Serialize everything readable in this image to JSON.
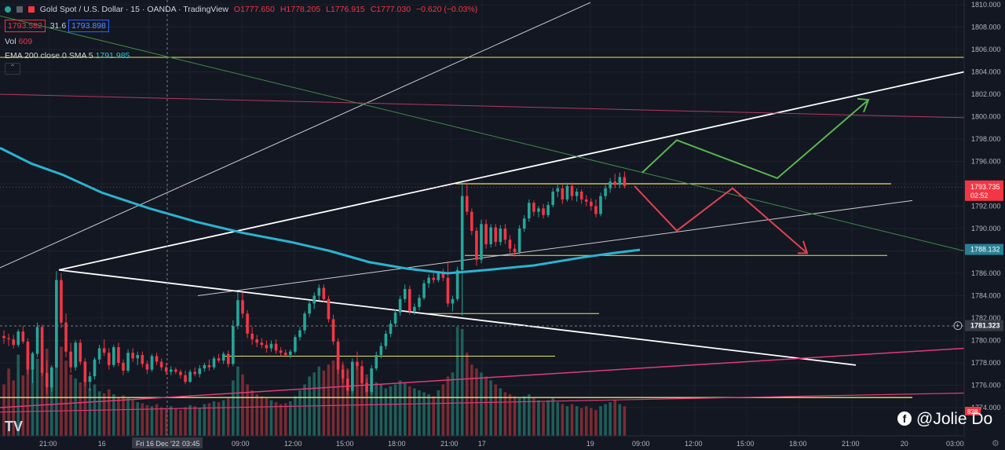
{
  "header": {
    "symbol": "Gold Spot / U.S. Dollar · 15 · OANDA · TradingView",
    "open": "O1777.650",
    "high": "H1778.205",
    "low": "L1776.915",
    "close": "C1777.030",
    "change": "−0.620 (−0.03%)",
    "sell_price": "1793.582",
    "spread": "31.6",
    "buy_price": "1793.898",
    "vol_label": "Vol",
    "vol_value": "609",
    "ema_label": "EMA 200 close 0 SMA 5",
    "ema_value": "1791.985",
    "collapse_icon": "chevron-up-icon"
  },
  "watermark": {
    "text": "@Jolie Do",
    "icon": "facebook-icon"
  },
  "tv_logo": "TV",
  "colors": {
    "background": "#131722",
    "up": "#26a69a",
    "down": "#f23645",
    "ema": "#2ab4cf",
    "yellow_level": "#e8e65c",
    "pink_line": "#e03b7a",
    "arrow_up": "#5ab552",
    "arrow_down": "#e0434f"
  },
  "chart_data": {
    "type": "candlestick",
    "y_ticks": [
      "1810.000",
      "1808.000",
      "1806.000",
      "1804.000",
      "1802.000",
      "1800.000",
      "1798.000",
      "1796.000",
      "1794.000",
      "1792.000",
      "1790.000",
      "1788.000",
      "1786.000",
      "1784.000",
      "1782.000",
      "1780.000",
      "1778.000",
      "1776.000",
      "1774.000"
    ],
    "ylim": [
      1773,
      1810.5
    ],
    "x_ticks": [
      "21:00",
      "16",
      "Fri 16 Dec '22",
      "03:45",
      "09:00",
      "12:00",
      "15:00",
      "18:00",
      "21:00",
      "17",
      "19",
      "09:00",
      "12:00",
      "15:00",
      "18:00",
      "21:00",
      "20",
      "03:00"
    ],
    "price_labels": {
      "current_price": "1793.735",
      "countdown": "02:52",
      "ema_price": "1788.132",
      "crosshair_price": "1781.323",
      "volume_value": "828"
    },
    "candles": [
      [
        1780.4,
        1780.9,
        1779.7,
        1780.2
      ],
      [
        1780.2,
        1780.6,
        1779.5,
        1780.1
      ],
      [
        1780.1,
        1780.5,
        1779.3,
        1779.6
      ],
      [
        1779.6,
        1781.0,
        1779.4,
        1780.8
      ],
      [
        1780.8,
        1781.3,
        1779.7,
        1779.9
      ],
      [
        1779.9,
        1780.2,
        1777.0,
        1777.4
      ],
      [
        1777.4,
        1779.0,
        1776.2,
        1778.8
      ],
      [
        1778.8,
        1781.6,
        1778.5,
        1781.2
      ],
      [
        1781.2,
        1781.4,
        1776.8,
        1777.1
      ],
      [
        1777.1,
        1778.2,
        1775.2,
        1775.8
      ],
      [
        1775.8,
        1777.8,
        1775.4,
        1777.6
      ],
      [
        1777.6,
        1786.2,
        1777.5,
        1785.4
      ],
      [
        1785.4,
        1786.0,
        1781.1,
        1781.6
      ],
      [
        1781.6,
        1782.4,
        1778.5,
        1779.0
      ],
      [
        1779.0,
        1779.8,
        1777.1,
        1777.6
      ],
      [
        1777.6,
        1780.0,
        1777.3,
        1779.8
      ],
      [
        1779.8,
        1780.1,
        1777.8,
        1778.1
      ],
      [
        1778.1,
        1778.4,
        1775.9,
        1776.3
      ],
      [
        1776.3,
        1777.2,
        1775.5,
        1776.8
      ],
      [
        1776.8,
        1778.5,
        1776.5,
        1778.3
      ],
      [
        1778.3,
        1779.6,
        1777.9,
        1779.3
      ],
      [
        1779.3,
        1780.1,
        1778.6,
        1778.9
      ],
      [
        1778.9,
        1779.3,
        1777.4,
        1777.8
      ],
      [
        1777.8,
        1779.6,
        1777.6,
        1779.4
      ],
      [
        1779.4,
        1779.8,
        1777.7,
        1778.0
      ],
      [
        1778.0,
        1778.3,
        1776.9,
        1777.3
      ],
      [
        1777.3,
        1779.2,
        1777.1,
        1778.9
      ],
      [
        1778.9,
        1779.3,
        1778.1,
        1778.4
      ],
      [
        1778.4,
        1779.0,
        1777.8,
        1778.7
      ],
      [
        1778.7,
        1779.0,
        1777.6,
        1777.9
      ],
      [
        1777.9,
        1778.2,
        1777.0,
        1777.4
      ],
      [
        1777.4,
        1778.8,
        1777.2,
        1778.6
      ],
      [
        1778.6,
        1778.9,
        1777.8,
        1778.1
      ],
      [
        1778.1,
        1778.4,
        1777.3,
        1777.6
      ],
      [
        1777.6,
        1778.0,
        1776.9,
        1777.2
      ],
      [
        1777.2,
        1777.7,
        1776.9,
        1777.4
      ],
      [
        1777.4,
        1777.6,
        1777.0,
        1777.2
      ],
      [
        1777.2,
        1777.4,
        1776.6,
        1776.9
      ],
      [
        1776.9,
        1777.3,
        1776.1,
        1776.3
      ],
      [
        1776.3,
        1777.4,
        1776.2,
        1777.2
      ],
      [
        1777.2,
        1777.6,
        1776.8,
        1777.0
      ],
      [
        1777.0,
        1777.8,
        1776.7,
        1777.5
      ],
      [
        1777.5,
        1778.0,
        1777.2,
        1777.8
      ],
      [
        1777.8,
        1778.3,
        1777.3,
        1777.6
      ],
      [
        1777.6,
        1778.6,
        1777.4,
        1778.4
      ],
      [
        1778.4,
        1778.8,
        1778.0,
        1778.2
      ],
      [
        1778.2,
        1779.0,
        1777.9,
        1778.8
      ],
      [
        1778.8,
        1779.1,
        1777.6,
        1777.9
      ],
      [
        1777.9,
        1781.8,
        1777.7,
        1781.3
      ],
      [
        1781.3,
        1784.3,
        1781.0,
        1783.6
      ],
      [
        1783.6,
        1784.3,
        1782.0,
        1782.4
      ],
      [
        1782.4,
        1782.7,
        1780.2,
        1780.6
      ],
      [
        1780.6,
        1781.2,
        1779.6,
        1780.1
      ],
      [
        1780.1,
        1780.5,
        1779.4,
        1779.8
      ],
      [
        1779.8,
        1780.2,
        1779.3,
        1779.6
      ],
      [
        1779.6,
        1780.0,
        1778.9,
        1779.3
      ],
      [
        1779.3,
        1780.0,
        1779.0,
        1779.7
      ],
      [
        1779.7,
        1780.1,
        1778.8,
        1779.1
      ],
      [
        1779.1,
        1779.4,
        1778.6,
        1778.9
      ],
      [
        1778.9,
        1779.2,
        1778.5,
        1778.7
      ],
      [
        1778.7,
        1779.2,
        1778.4,
        1779.0
      ],
      [
        1779.0,
        1780.5,
        1778.8,
        1780.3
      ],
      [
        1780.3,
        1781.2,
        1780.0,
        1780.9
      ],
      [
        1780.9,
        1782.6,
        1780.6,
        1782.4
      ],
      [
        1782.4,
        1783.6,
        1782.1,
        1783.3
      ],
      [
        1783.3,
        1784.3,
        1782.8,
        1784.0
      ],
      [
        1784.0,
        1785.0,
        1783.6,
        1784.7
      ],
      [
        1784.7,
        1785.0,
        1783.4,
        1783.7
      ],
      [
        1783.7,
        1784.0,
        1781.6,
        1781.9
      ],
      [
        1781.9,
        1782.3,
        1779.6,
        1779.9
      ],
      [
        1779.9,
        1780.2,
        1777.0,
        1777.4
      ],
      [
        1777.4,
        1778.1,
        1776.2,
        1776.6
      ],
      [
        1776.6,
        1777.3,
        1775.1,
        1775.5
      ],
      [
        1775.5,
        1778.4,
        1775.3,
        1778.1
      ],
      [
        1778.1,
        1779.0,
        1777.4,
        1777.7
      ],
      [
        1777.7,
        1778.2,
        1775.9,
        1776.2
      ],
      [
        1776.2,
        1776.6,
        1775.0,
        1775.4
      ],
      [
        1775.4,
        1777.8,
        1775.2,
        1777.5
      ],
      [
        1777.5,
        1779.0,
        1777.3,
        1778.7
      ],
      [
        1778.7,
        1779.8,
        1778.4,
        1779.5
      ],
      [
        1779.5,
        1780.9,
        1779.2,
        1780.6
      ],
      [
        1780.6,
        1781.8,
        1780.3,
        1781.5
      ],
      [
        1781.5,
        1782.8,
        1781.2,
        1782.5
      ],
      [
        1782.5,
        1784.0,
        1782.2,
        1783.7
      ],
      [
        1783.7,
        1785.0,
        1783.4,
        1784.6
      ],
      [
        1784.6,
        1784.9,
        1782.3,
        1782.6
      ],
      [
        1782.6,
        1783.3,
        1782.3,
        1783.0
      ],
      [
        1783.0,
        1784.1,
        1782.7,
        1783.8
      ],
      [
        1783.8,
        1785.4,
        1783.6,
        1785.1
      ],
      [
        1785.1,
        1785.9,
        1784.7,
        1785.6
      ],
      [
        1785.6,
        1786.0,
        1785.1,
        1785.4
      ],
      [
        1785.4,
        1786.2,
        1785.2,
        1786.0
      ],
      [
        1786.0,
        1786.4,
        1785.3,
        1785.6
      ],
      [
        1785.6,
        1787.1,
        1783.0,
        1783.3
      ],
      [
        1783.3,
        1784.0,
        1782.6,
        1783.7
      ],
      [
        1783.7,
        1786.6,
        1783.5,
        1786.3
      ],
      [
        1786.3,
        1794.1,
        1782.2,
        1792.9
      ],
      [
        1792.9,
        1794.1,
        1791.2,
        1791.5
      ],
      [
        1791.5,
        1791.8,
        1789.4,
        1789.8
      ],
      [
        1789.8,
        1790.1,
        1786.7,
        1787.2
      ],
      [
        1787.2,
        1790.8,
        1786.9,
        1790.4
      ],
      [
        1790.4,
        1790.8,
        1788.2,
        1788.6
      ],
      [
        1788.6,
        1790.4,
        1788.3,
        1790.1
      ],
      [
        1790.1,
        1790.4,
        1788.4,
        1788.8
      ],
      [
        1788.8,
        1790.3,
        1788.5,
        1790.0
      ],
      [
        1790.0,
        1790.4,
        1788.6,
        1789.0
      ],
      [
        1789.0,
        1789.4,
        1787.8,
        1788.2
      ],
      [
        1788.2,
        1788.6,
        1787.5,
        1787.9
      ],
      [
        1787.9,
        1790.3,
        1787.7,
        1790.0
      ],
      [
        1790.0,
        1791.2,
        1789.7,
        1790.9
      ],
      [
        1790.9,
        1792.6,
        1790.6,
        1792.3
      ],
      [
        1792.3,
        1792.5,
        1791.1,
        1791.5
      ],
      [
        1791.5,
        1792.0,
        1791.0,
        1791.8
      ],
      [
        1791.8,
        1792.2,
        1790.9,
        1791.2
      ],
      [
        1791.2,
        1792.4,
        1791.0,
        1792.1
      ],
      [
        1792.1,
        1793.6,
        1791.9,
        1793.3
      ],
      [
        1793.3,
        1794.0,
        1792.8,
        1793.6
      ],
      [
        1793.6,
        1793.9,
        1792.2,
        1792.6
      ],
      [
        1792.6,
        1794.1,
        1792.4,
        1793.8
      ],
      [
        1793.8,
        1794.1,
        1792.5,
        1792.9
      ],
      [
        1792.9,
        1793.6,
        1792.4,
        1793.3
      ],
      [
        1793.3,
        1793.5,
        1792.2,
        1792.6
      ],
      [
        1792.6,
        1793.0,
        1792.0,
        1792.4
      ],
      [
        1792.4,
        1792.7,
        1791.6,
        1792.0
      ],
      [
        1792.0,
        1792.6,
        1791.0,
        1791.3
      ],
      [
        1791.3,
        1793.2,
        1791.1,
        1792.9
      ],
      [
        1792.9,
        1793.9,
        1792.6,
        1793.6
      ],
      [
        1793.6,
        1794.5,
        1793.2,
        1794.2
      ],
      [
        1794.2,
        1794.9,
        1793.6,
        1793.9
      ],
      [
        1793.9,
        1795.0,
        1793.6,
        1794.6
      ],
      [
        1794.6,
        1795.1,
        1793.6,
        1793.8
      ]
    ],
    "volume_max": 1150,
    "volumes": [
      520,
      680,
      560,
      820,
      610,
      920,
      840,
      780,
      700,
      880,
      650,
      1150,
      900,
      760,
      620,
      580,
      540,
      600,
      480,
      520,
      450,
      430,
      470,
      420,
      390,
      410,
      380,
      360,
      340,
      330,
      310,
      300,
      320,
      290,
      280,
      300,
      270,
      260,
      290,
      310,
      300,
      280,
      320,
      330,
      350,
      340,
      360,
      380,
      560,
      700,
      620,
      520,
      460,
      420,
      400,
      380,
      360,
      340,
      320,
      330,
      350,
      400,
      460,
      520,
      600,
      640,
      700,
      660,
      720,
      760,
      800,
      720,
      680,
      740,
      700,
      660,
      620,
      580,
      540,
      520,
      480,
      500,
      520,
      560,
      540,
      500,
      480,
      460,
      440,
      420,
      400,
      460,
      520,
      600,
      640,
      1100,
      1080,
      840,
      720,
      680,
      640,
      600,
      560,
      520,
      480,
      440,
      420,
      400,
      380,
      400,
      420,
      380,
      360,
      340,
      360,
      380,
      340,
      320,
      300,
      320,
      300,
      280,
      300,
      280,
      260,
      300,
      320,
      340,
      360,
      320,
      300
    ]
  }
}
